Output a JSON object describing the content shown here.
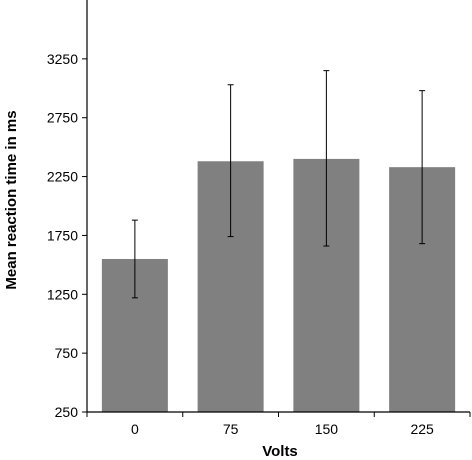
{
  "chart_data": {
    "type": "bar",
    "title": "",
    "xlabel": "Volts",
    "ylabel": "Mean reaction time in ms",
    "categories": [
      "0",
      "75",
      "150",
      "225"
    ],
    "values": [
      1550,
      2380,
      2400,
      2330
    ],
    "error_low": [
      1220,
      1740,
      1660,
      1680
    ],
    "error_high": [
      1880,
      3030,
      3150,
      2980
    ],
    "ylim": [
      250,
      3750
    ],
    "yticks": [
      250,
      750,
      1250,
      1750,
      2250,
      2750,
      3250
    ],
    "bar_color": "#808080",
    "grid": false,
    "legend": "none"
  }
}
